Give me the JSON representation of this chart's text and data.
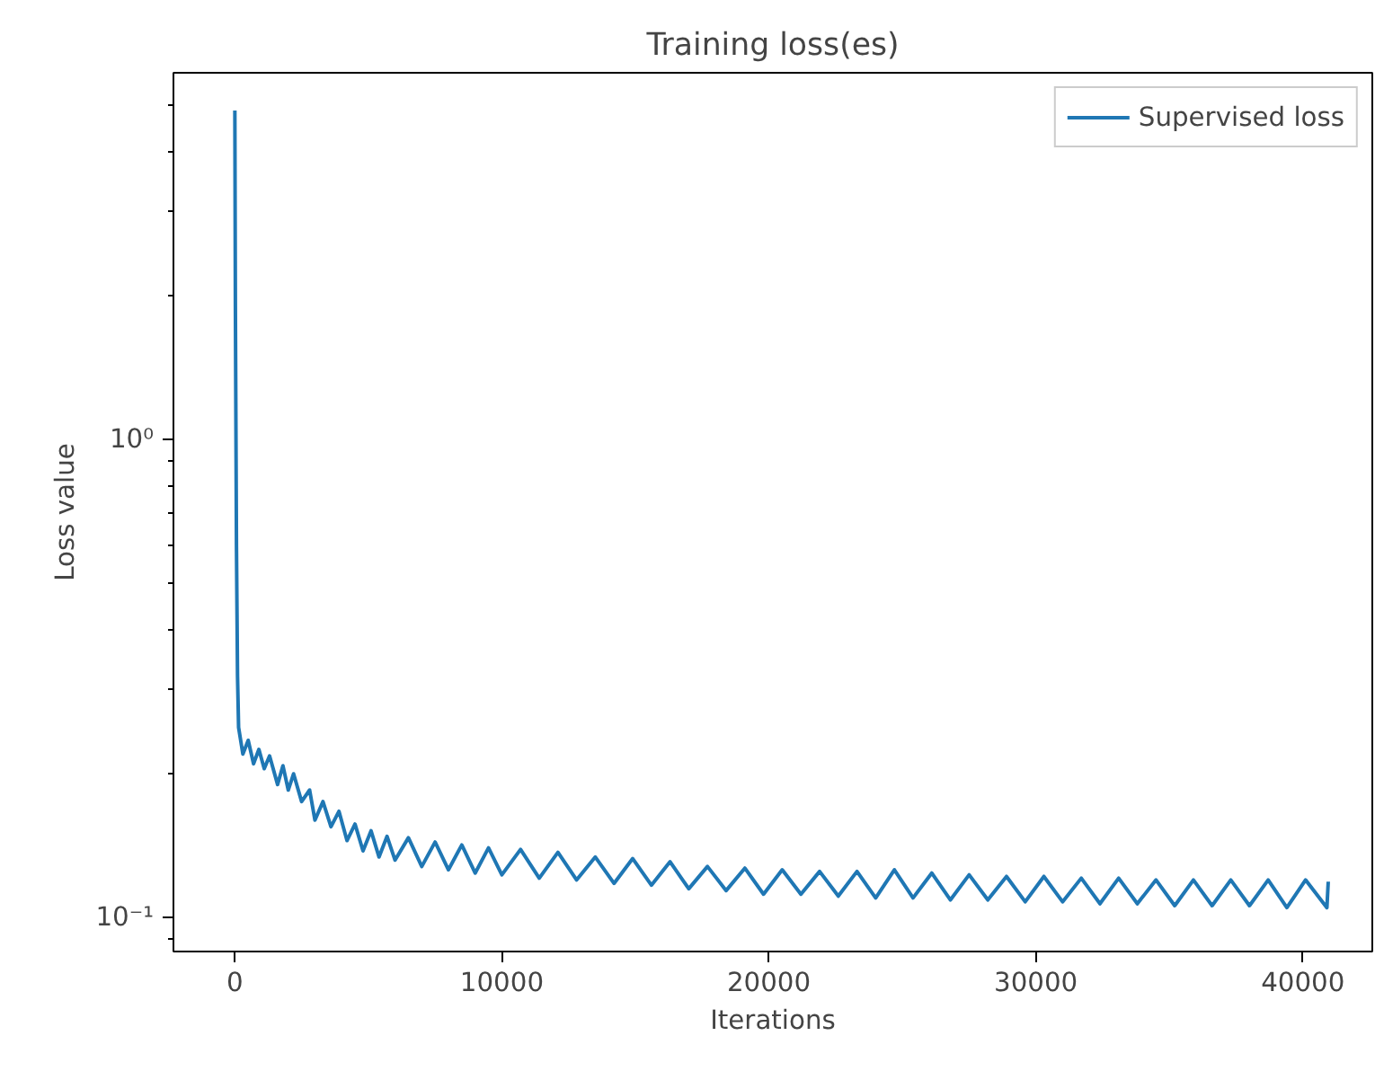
{
  "chart_data": {
    "type": "line",
    "title": "Training loss(es)",
    "xlabel": "Iterations",
    "ylabel": "Loss value",
    "log": "y",
    "grid": false,
    "legend": "top right",
    "marker": "none",
    "line_style": "solid",
    "xlim": [
      -2300,
      42600
    ],
    "xticks": [
      0,
      10000,
      20000,
      30000,
      40000
    ],
    "ylim": [
      0.085,
      5.85
    ],
    "yticks": [
      {
        "value": 0.09,
        "label": null
      },
      {
        "value": 0.1,
        "label": "10⁻¹"
      },
      {
        "value": 0.2,
        "label": null
      },
      {
        "value": 0.3,
        "label": null
      },
      {
        "value": 0.4,
        "label": null
      },
      {
        "value": 0.5,
        "label": null
      },
      {
        "value": 0.6,
        "label": null
      },
      {
        "value": 0.7,
        "label": null
      },
      {
        "value": 0.8,
        "label": null
      },
      {
        "value": 0.9,
        "label": null
      },
      {
        "value": 1,
        "label": "10⁰"
      },
      {
        "value": 2,
        "label": null
      },
      {
        "value": 3,
        "label": null
      },
      {
        "value": 4,
        "label": null
      },
      {
        "value": 5,
        "label": null
      }
    ],
    "series": [
      {
        "name": "Supervised loss",
        "color": "#1f77b4",
        "x": [
          0,
          20,
          60,
          100,
          140,
          300,
          500,
          700,
          900,
          1100,
          1300,
          1600,
          1800,
          2000,
          2200,
          2500,
          2800,
          3000,
          3300,
          3600,
          3900,
          4200,
          4500,
          4800,
          5100,
          5400,
          5700,
          6000,
          6500,
          7000,
          7500,
          8000,
          8500,
          9000,
          9500,
          10000,
          10700,
          11400,
          12100,
          12800,
          13500,
          14200,
          14900,
          15600,
          16300,
          17000,
          17700,
          18400,
          19100,
          19800,
          20500,
          21200,
          21900,
          22600,
          23300,
          24000,
          24700,
          25400,
          26100,
          26800,
          27500,
          28200,
          28900,
          29600,
          30300,
          31000,
          31700,
          32400,
          33100,
          33800,
          34500,
          35200,
          35900,
          36600,
          37300,
          38000,
          38700,
          39400,
          40100,
          40900,
          40950
        ],
        "values": [
          4.88,
          1.9,
          0.6,
          0.32,
          0.25,
          0.22,
          0.235,
          0.21,
          0.225,
          0.205,
          0.218,
          0.19,
          0.208,
          0.185,
          0.2,
          0.175,
          0.185,
          0.16,
          0.175,
          0.155,
          0.167,
          0.145,
          0.157,
          0.138,
          0.152,
          0.134,
          0.148,
          0.132,
          0.147,
          0.128,
          0.144,
          0.126,
          0.142,
          0.124,
          0.14,
          0.123,
          0.139,
          0.121,
          0.137,
          0.12,
          0.134,
          0.118,
          0.133,
          0.117,
          0.131,
          0.115,
          0.128,
          0.114,
          0.127,
          0.112,
          0.126,
          0.112,
          0.125,
          0.111,
          0.125,
          0.11,
          0.126,
          0.11,
          0.124,
          0.109,
          0.123,
          0.109,
          0.122,
          0.108,
          0.122,
          0.108,
          0.121,
          0.107,
          0.121,
          0.107,
          0.12,
          0.106,
          0.12,
          0.106,
          0.12,
          0.106,
          0.12,
          0.105,
          0.12,
          0.105,
          0.119
        ]
      }
    ]
  }
}
